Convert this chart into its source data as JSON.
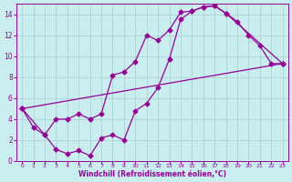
{
  "xlabel": "Windchill (Refroidissement éolien,°C)",
  "xlim": [
    -0.5,
    23.5
  ],
  "ylim": [
    0,
    15
  ],
  "xticks": [
    0,
    1,
    2,
    3,
    4,
    5,
    6,
    7,
    8,
    9,
    10,
    11,
    12,
    13,
    14,
    15,
    16,
    17,
    18,
    19,
    20,
    21,
    22,
    23
  ],
  "yticks": [
    0,
    2,
    4,
    6,
    8,
    10,
    12,
    14
  ],
  "bg_color": "#c8eef0",
  "line_color": "#990099",
  "grid_color": "#aacccc",
  "curve1_x": [
    0,
    1,
    2,
    3,
    4,
    5,
    6,
    7,
    8,
    9,
    10,
    11,
    12,
    13,
    14,
    15,
    16,
    17,
    18,
    19,
    20,
    21,
    22,
    23
  ],
  "curve1_y": [
    5.0,
    3.2,
    2.5,
    1.1,
    0.7,
    1.0,
    0.5,
    2.2,
    2.5,
    2.0,
    4.8,
    5.5,
    7.0,
    9.7,
    13.5,
    14.3,
    14.7,
    14.8,
    14.1,
    13.3,
    12.0,
    11.0,
    9.3,
    9.3
  ],
  "curve2_x": [
    0,
    2,
    3,
    4,
    5,
    6,
    7,
    8,
    9,
    10,
    11,
    12,
    13,
    14,
    15,
    16,
    17,
    18,
    23
  ],
  "curve2_y": [
    5.0,
    2.5,
    4.0,
    4.0,
    4.5,
    4.0,
    4.5,
    8.2,
    8.5,
    9.5,
    12.0,
    11.5,
    12.5,
    14.2,
    14.3,
    14.7,
    14.8,
    14.1,
    9.3
  ],
  "curve3_x": [
    0,
    23
  ],
  "curve3_y": [
    5.0,
    9.3
  ],
  "markersize": 2.5,
  "linewidth": 0.9
}
